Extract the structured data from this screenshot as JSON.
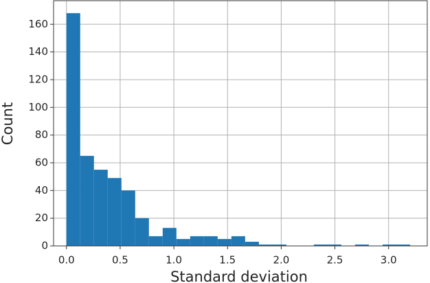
{
  "chart_data": {
    "type": "histogram",
    "x_label": "Standard deviation",
    "y_label": "Count",
    "bins": [
      0,
      0.128,
      0.256,
      0.384,
      0.512,
      0.64,
      0.768,
      0.896,
      1.024,
      1.152,
      1.28,
      1.408,
      1.536,
      1.664,
      1.792,
      1.92,
      2.048,
      2.176,
      2.304,
      2.432,
      2.56,
      2.688,
      2.816,
      2.944,
      3.072,
      3.2
    ],
    "values": [
      168,
      65,
      55,
      49,
      40,
      20,
      7,
      13,
      5,
      7,
      7,
      5,
      7,
      3,
      1,
      1,
      0,
      0,
      1,
      1,
      0,
      1,
      0,
      1,
      1
    ],
    "color": "#1f77b4",
    "xlim": [
      -0.12,
      3.36
    ],
    "xticks": [
      {
        "value": 0,
        "label": "0.0"
      },
      0.5,
      {
        "value": 1,
        "label": "1.0"
      },
      1.5,
      {
        "value": 2,
        "label": "2.0"
      },
      2.5,
      {
        "value": 3,
        "label": "3.0"
      }
    ],
    "ylim": [
      0,
      177
    ],
    "yticks": [
      0,
      20,
      40,
      60,
      80,
      100,
      120,
      140,
      160
    ],
    "grid": true
  }
}
